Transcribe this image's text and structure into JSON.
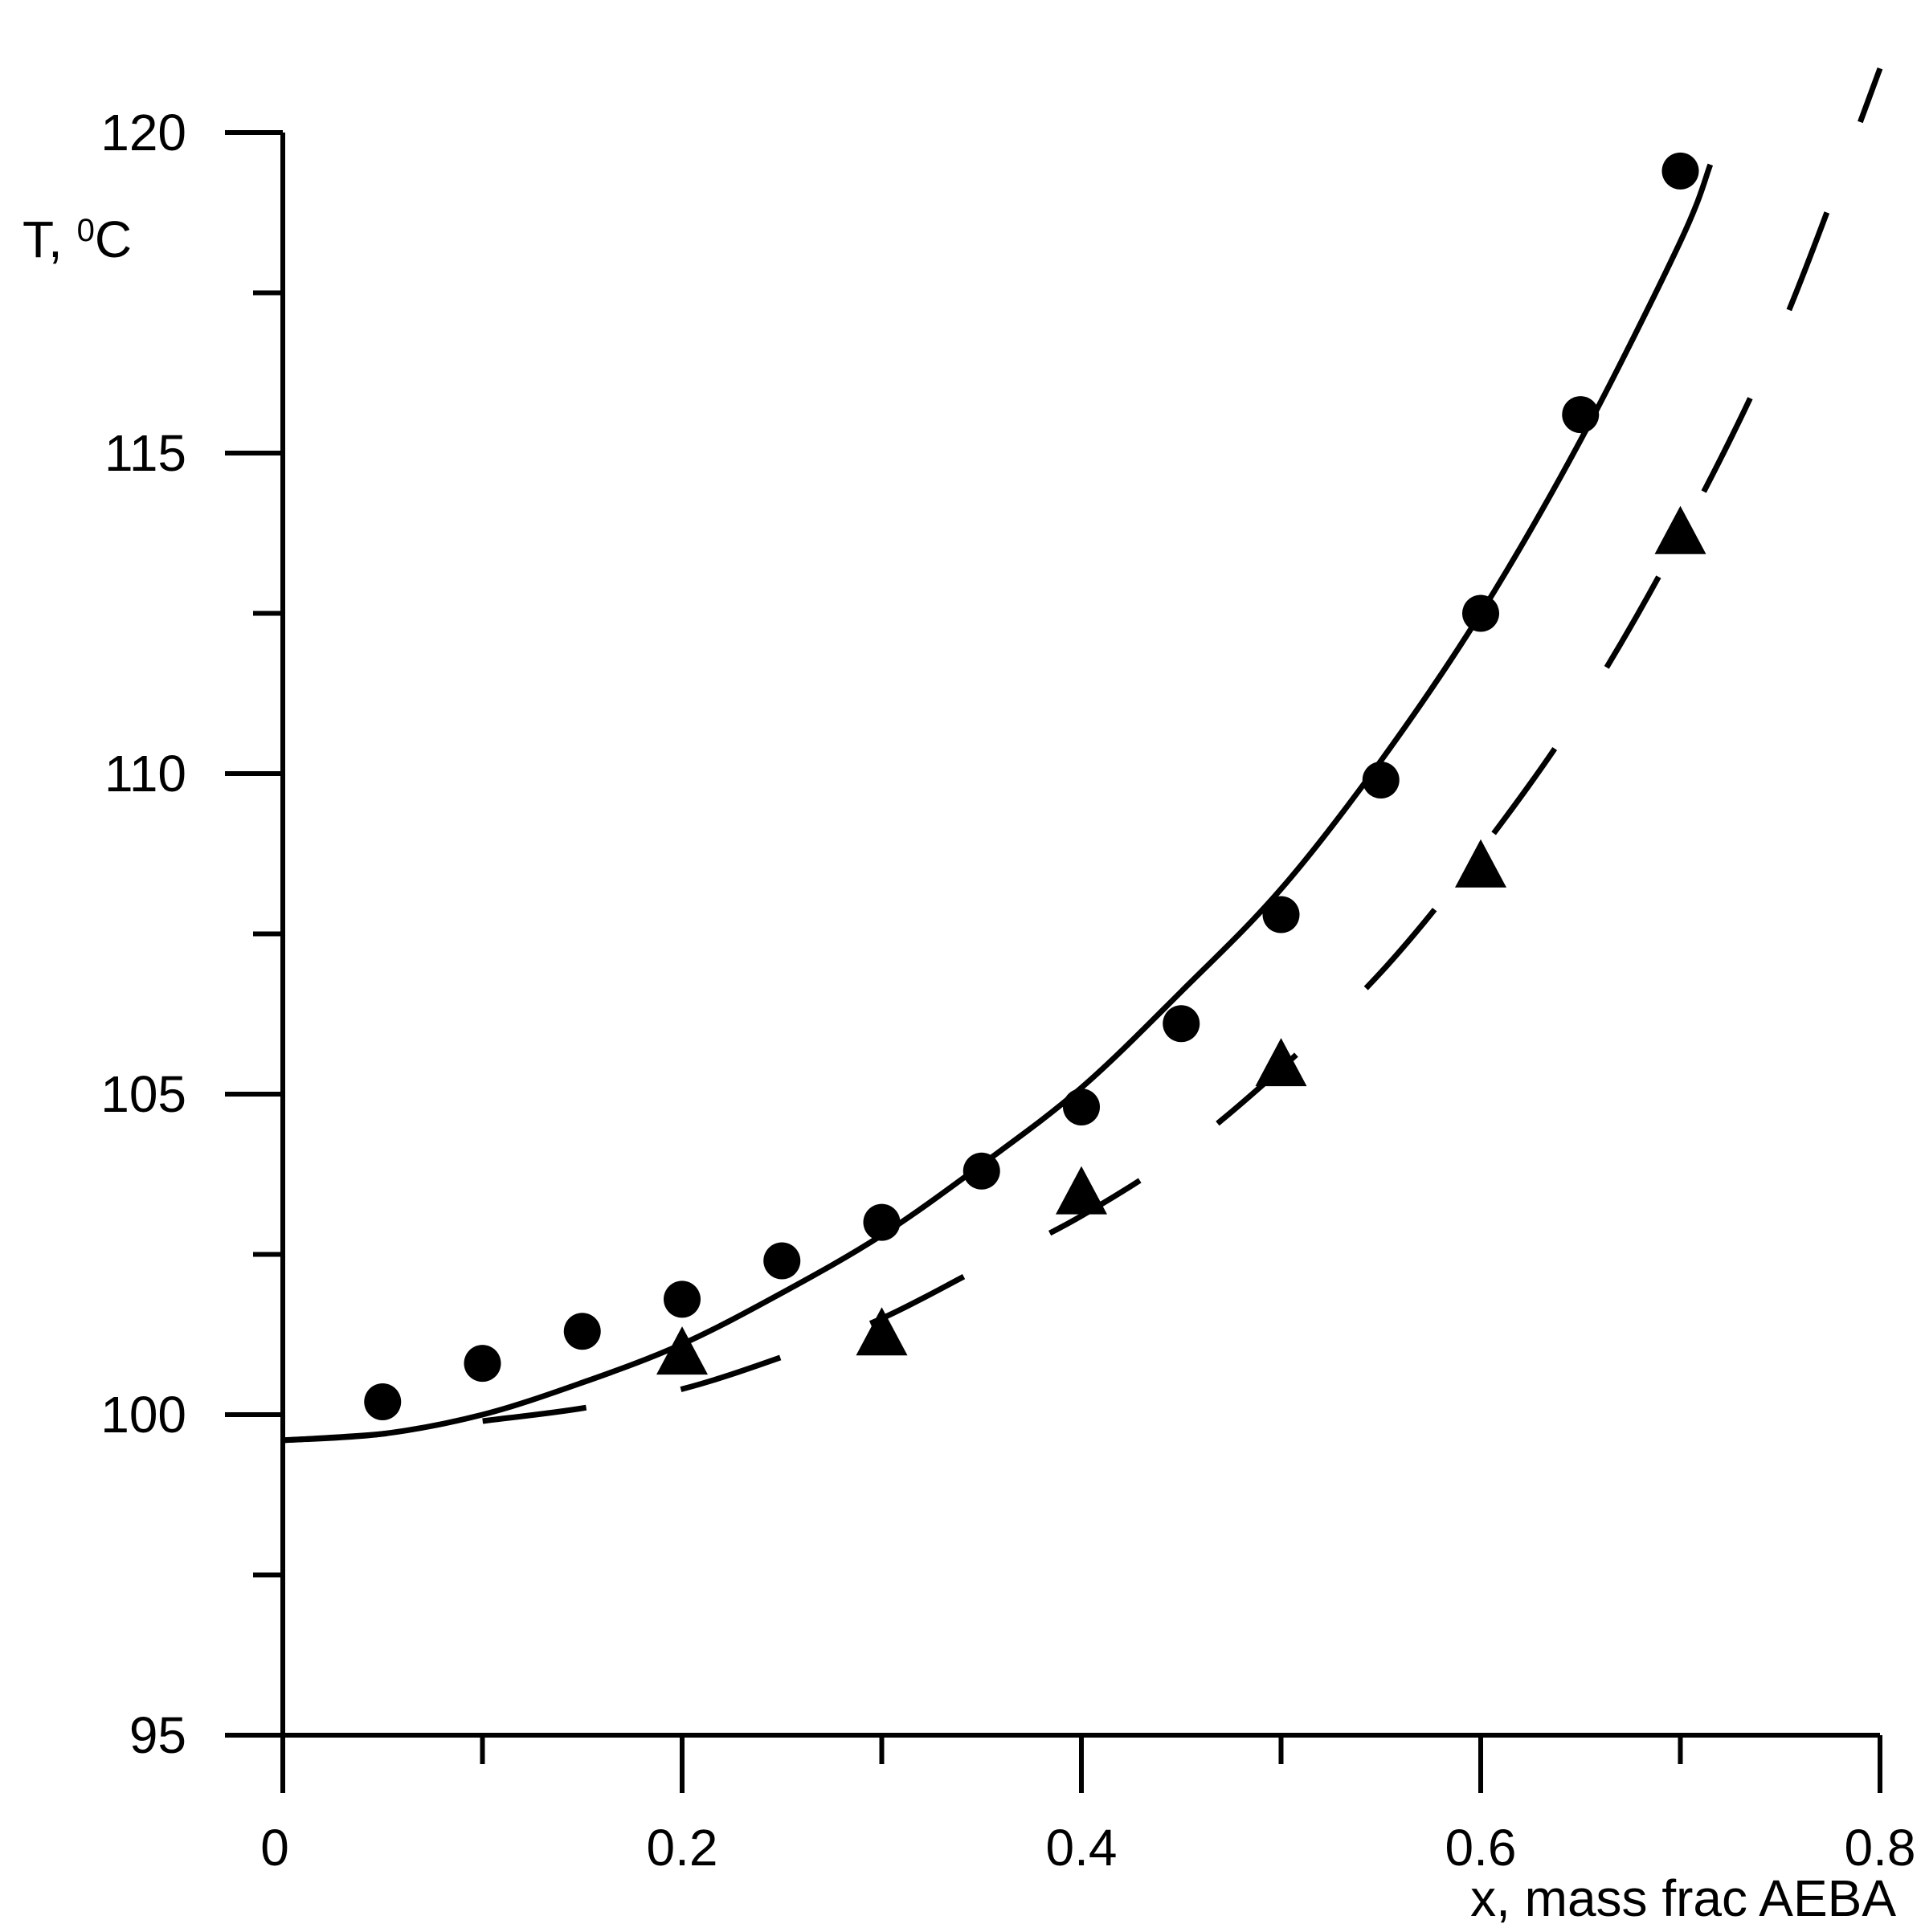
{
  "chart_data": {
    "type": "line",
    "xlabel": "x, mass frac AEBA",
    "ylabel": {
      "base": "T, ",
      "superscript": "0",
      "unit": "C"
    },
    "xlim": [
      0,
      0.8
    ],
    "ylim": [
      95,
      120
    ],
    "x_ticks": [
      {
        "value": 0,
        "label": "0"
      },
      {
        "value": 0.2,
        "label": "0.2"
      },
      {
        "value": 0.4,
        "label": "0.4"
      },
      {
        "value": 0.6,
        "label": "0.6"
      },
      {
        "value": 0.8,
        "label": "0.8"
      }
    ],
    "x_minor_ticks": [
      0.1,
      0.3,
      0.5,
      0.7
    ],
    "y_ticks": [
      {
        "value": 95,
        "label": "95"
      },
      {
        "value": 100,
        "label": "100"
      },
      {
        "value": 105,
        "label": "105"
      },
      {
        "value": 110,
        "label": "110"
      },
      {
        "value": 115,
        "label": "115"
      },
      {
        "value": 120,
        "label": "120"
      }
    ],
    "y_minor_ticks": [
      97.5,
      102.5,
      107.5,
      112.5,
      117.5
    ],
    "grid": false,
    "series": [
      {
        "kind": "scatter",
        "marker": "circle",
        "color": "#000000",
        "x": [
          0.05,
          0.1,
          0.15,
          0.2,
          0.25,
          0.3,
          0.35,
          0.4,
          0.45,
          0.5,
          0.55,
          0.6,
          0.65,
          0.7
        ],
        "y": [
          100.2,
          100.8,
          101.3,
          101.8,
          102.4,
          103.0,
          103.8,
          104.8,
          106.1,
          107.8,
          109.9,
          112.5,
          115.6,
          119.4
        ]
      },
      {
        "kind": "line",
        "style": "solid",
        "color": "#000000",
        "x": [
          0,
          0.05,
          0.1,
          0.15,
          0.2,
          0.25,
          0.3,
          0.35,
          0.4,
          0.45,
          0.5,
          0.55,
          0.6,
          0.65,
          0.7,
          0.715
        ],
        "y": [
          99.6,
          99.7,
          100.0,
          100.5,
          101.1,
          101.9,
          102.8,
          103.9,
          105.1,
          106.6,
          108.2,
          110.2,
          112.5,
          115.2,
          118.3,
          119.5
        ]
      },
      {
        "kind": "scatter",
        "marker": "triangle",
        "color": "#000000",
        "x": [
          0.2,
          0.3,
          0.4,
          0.5,
          0.6,
          0.7
        ],
        "y": [
          100.9,
          101.2,
          103.4,
          105.4,
          108.5,
          113.7
        ]
      },
      {
        "kind": "line",
        "style": "dashed",
        "color": "#000000",
        "x": [
          0,
          0.05,
          0.1,
          0.15,
          0.2,
          0.25,
          0.3,
          0.35,
          0.4,
          0.45,
          0.5,
          0.55,
          0.6,
          0.65,
          0.7,
          0.75,
          0.8
        ],
        "y": [
          99.6,
          99.7,
          99.9,
          100.1,
          100.4,
          100.9,
          101.5,
          102.3,
          103.1,
          104.1,
          105.4,
          106.9,
          108.8,
          111.0,
          113.7,
          116.9,
          121.0
        ]
      }
    ]
  }
}
